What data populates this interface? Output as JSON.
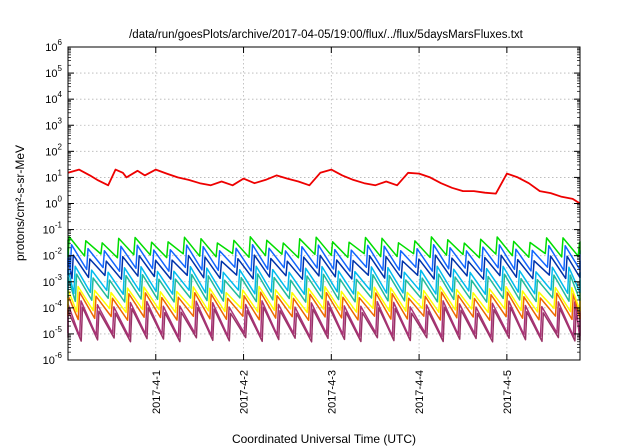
{
  "chart_data": {
    "type": "line",
    "title": "/data/run/goesPlots/archive/2017-04-05/19:00/flux/../flux/5daysMarsFluxes.txt",
    "xlabel": "Coordinated Universal Time (UTC)",
    "ylabel": "protons/cm²-s-sr-MeV",
    "y_scale": "log",
    "ylim": [
      1e-06,
      1000000.0
    ],
    "xlim": [
      "2017-03-31T00:00",
      "2017-04-05T20:00"
    ],
    "x_ticks": [
      "2017-4-1",
      "2017-4-2",
      "2017-4-3",
      "2017-4-4",
      "2017-4-5"
    ],
    "y_ticks": [
      {
        "value": 1e-06,
        "base": "10",
        "exp": "-6"
      },
      {
        "value": 1e-05,
        "base": "10",
        "exp": "-5"
      },
      {
        "value": 0.0001,
        "base": "10",
        "exp": "-4"
      },
      {
        "value": 0.001,
        "base": "10",
        "exp": "-3"
      },
      {
        "value": 0.01,
        "base": "10",
        "exp": "-2"
      },
      {
        "value": 0.1,
        "base": "10",
        "exp": "-1"
      },
      {
        "value": 1,
        "base": "10",
        "exp": "0"
      },
      {
        "value": 10,
        "base": "10",
        "exp": "1"
      },
      {
        "value": 100,
        "base": "10",
        "exp": "2"
      },
      {
        "value": 1000,
        "base": "10",
        "exp": "3"
      },
      {
        "value": 10000,
        "base": "10",
        "exp": "4"
      },
      {
        "value": 100000,
        "base": "10",
        "exp": "5"
      },
      {
        "value": 1000000,
        "base": "10",
        "exp": "6"
      }
    ],
    "grid": true,
    "legend": "none",
    "series": [
      {
        "color": "#ee0000",
        "x": [
          "2017-03-31T00:00",
          "2017-03-31T03:00",
          "2017-03-31T06:00",
          "2017-03-31T08:00",
          "2017-03-31T11:00",
          "2017-03-31T13:00",
          "2017-03-31T15:00",
          "2017-03-31T16:00",
          "2017-03-31T19:00",
          "2017-03-31T21:00",
          "2017-04-01T00:00",
          "2017-04-01T03:00",
          "2017-04-01T06:00",
          "2017-04-01T09:00",
          "2017-04-01T12:00",
          "2017-04-01T15:00",
          "2017-04-01T18:00",
          "2017-04-01T21:00",
          "2017-04-02T00:00",
          "2017-04-02T03:00",
          "2017-04-02T06:00",
          "2017-04-02T09:00",
          "2017-04-02T12:00",
          "2017-04-02T15:00",
          "2017-04-02T18:00",
          "2017-04-02T21:00",
          "2017-04-03T00:00",
          "2017-04-03T03:00",
          "2017-04-03T06:00",
          "2017-04-03T09:00",
          "2017-04-03T12:00",
          "2017-04-03T15:00",
          "2017-04-03T18:00",
          "2017-04-03T21:00",
          "2017-04-04T00:00",
          "2017-04-04T03:00",
          "2017-04-04T06:00",
          "2017-04-04T09:00",
          "2017-04-04T12:00",
          "2017-04-04T15:00",
          "2017-04-04T18:00",
          "2017-04-04T21:00",
          "2017-04-05T00:00",
          "2017-04-05T03:00",
          "2017-04-05T06:00",
          "2017-04-05T09:00",
          "2017-04-05T12:00",
          "2017-04-05T15:00",
          "2017-04-05T18:00",
          "2017-04-05T20:00"
        ],
        "y": [
          15,
          20,
          12,
          8,
          5,
          20,
          15,
          10,
          18,
          12,
          20,
          14,
          10,
          8,
          6,
          5,
          7,
          5,
          9,
          6,
          8,
          12,
          9,
          7,
          5,
          15,
          20,
          12,
          8,
          6,
          5,
          7,
          5,
          15,
          14,
          10,
          6,
          4,
          3,
          3,
          2.6,
          2.4,
          14,
          10,
          6,
          3,
          2.5,
          1.8,
          1.5,
          1.0
        ]
      },
      {
        "color": "#00dd00",
        "band": [
          0.01,
          0.04
        ],
        "period_hours": 4.5,
        "phase_hours": 0
      },
      {
        "color": "#1166ff",
        "band": [
          0.003,
          0.02
        ],
        "period_hours": 4.5,
        "phase_hours": 0.6
      },
      {
        "color": "#0033aa",
        "band": [
          0.0015,
          0.008
        ],
        "period_hours": 4.5,
        "phase_hours": 1.1
      },
      {
        "color": "#00bbee",
        "band": [
          0.0004,
          0.003
        ],
        "period_hours": 4.5,
        "phase_hours": 1.6
      },
      {
        "color": "#22bb99",
        "band": [
          0.0002,
          0.0015
        ],
        "period_hours": 4.5,
        "phase_hours": 2.0
      },
      {
        "color": "#ffff00",
        "band": [
          8e-05,
          0.0005
        ],
        "period_hours": 4.5,
        "phase_hours": 2.4
      },
      {
        "color": "#ee6600",
        "band": [
          4e-05,
          0.0003
        ],
        "period_hours": 4.5,
        "phase_hours": 2.8
      },
      {
        "color": "#aa3377",
        "band": [
          9e-06,
          0.00014
        ],
        "period_hours": 4.5,
        "phase_hours": 3.2
      },
      {
        "color": "#993366",
        "band": [
          6e-06,
          8e-05
        ],
        "period_hours": 4.5,
        "phase_hours": 3.6
      }
    ]
  }
}
